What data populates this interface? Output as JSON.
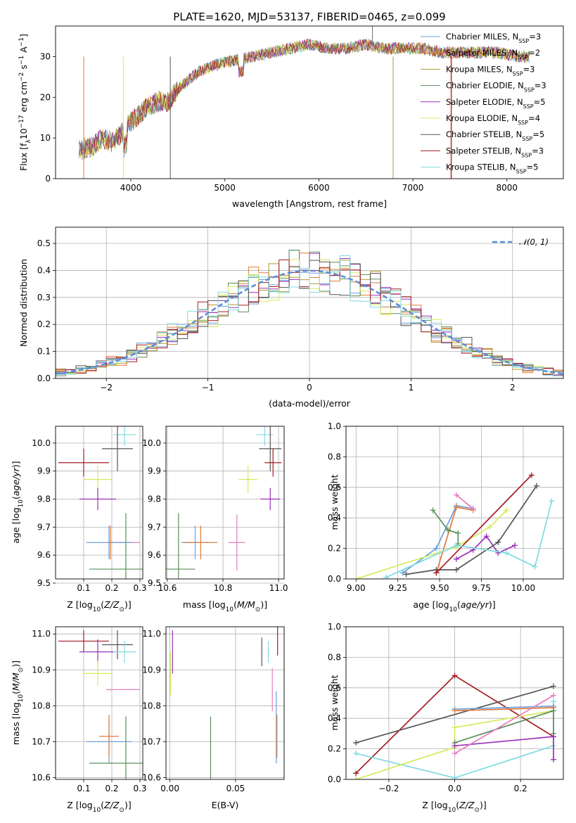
{
  "colors": {
    "chabrier_miles": "#6a9fdc",
    "salpeter_miles": "#e07b39",
    "kroupa_miles": "#b09a30",
    "chabrier_elodie": "#5b8f5b",
    "salpeter_elodie": "#9a30b8",
    "kroupa_elodie": "#d6ea5a",
    "chabrier_stelib": "#555555",
    "salpeter_stelib": "#a51d23",
    "kroupa_stelib": "#7fdbdf",
    "pink": "#e57bbf",
    "normal": "#5b8bd9"
  },
  "chart_data": [
    {
      "id": "spectrum",
      "type": "line",
      "title": "PLATE=1620, MJD=53137, FIBERID=0465, z=0.099",
      "xlabel": "wavelength [Angstrom, rest frame]",
      "ylabel": "Flux [fλ10⁻¹⁷ erg cm⁻² s⁻¹ A⁻¹]",
      "xlim": [
        3200,
        8600
      ],
      "ylim": [
        0,
        37.5
      ],
      "xticks": [
        "4000",
        "5000",
        "6000",
        "7000",
        "8000"
      ],
      "yticks": [
        "0",
        "10",
        "20",
        "30"
      ],
      "legend_position": "top-right",
      "envelope": {
        "x": [
          3450,
          3600,
          3700,
          3800,
          3900,
          4000,
          4100,
          4200,
          4300,
          4400,
          4500,
          4700,
          4900,
          5100,
          5300,
          5500,
          5700,
          5900,
          6100,
          6300,
          6500,
          6700,
          6900,
          7100,
          7300,
          7500,
          7700,
          7900,
          8100,
          8240
        ],
        "y": [
          7,
          8,
          10,
          9,
          11,
          14,
          16,
          18,
          19,
          19,
          22,
          26,
          28,
          29,
          30,
          31,
          32,
          33,
          32,
          32,
          33,
          32,
          32,
          32,
          31,
          31,
          31,
          31,
          30,
          30
        ]
      },
      "series": [
        {
          "name": "Chabrier MILES, N_SSP=3",
          "label_main": "Chabrier MILES, N",
          "label_sub": "SSP",
          "label_tail": "=3",
          "color": "#6a9fdc"
        },
        {
          "name": "Salpeter MILES, N_SSP=2",
          "label_main": "Salpeter MILES, N",
          "label_sub": "SSP",
          "label_tail": "=2",
          "color": "#e07b39"
        },
        {
          "name": "Kroupa MILES, N_SSP=3",
          "label_main": "Kroupa MILES, N",
          "label_sub": "SSP",
          "label_tail": "=3",
          "color": "#b09a30"
        },
        {
          "name": "Chabrier ELODIE, N_SSP=3",
          "label_main": "Chabrier ELODIE, N",
          "label_sub": "SSP",
          "label_tail": "=3",
          "color": "#5b8f5b"
        },
        {
          "name": "Salpeter ELODIE, N_SSP=5",
          "label_main": "Salpeter ELODIE, N",
          "label_sub": "SSP",
          "label_tail": "=5",
          "color": "#9a30b8"
        },
        {
          "name": "Kroupa ELODIE, N_SSP=4",
          "label_main": "Kroupa ELODIE, N",
          "label_sub": "SSP",
          "label_tail": "=4",
          "color": "#d6ea5a"
        },
        {
          "name": "Chabrier STELIB, N_SSP=5",
          "label_main": "Chabrier STELIB, N",
          "label_sub": "SSP",
          "label_tail": "=5",
          "color": "#555555"
        },
        {
          "name": "Salpeter STELIB, N_SSP=3",
          "label_main": "Salpeter STELIB, N",
          "label_sub": "SSP",
          "label_tail": "=3",
          "color": "#a51d23"
        },
        {
          "name": "Kroupa STELIB, N_SSP=5",
          "label_main": "Kroupa STELIB, N",
          "label_sub": "SSP",
          "label_tail": "=5",
          "color": "#7fdbdf"
        }
      ]
    },
    {
      "id": "residuals",
      "type": "line",
      "xlabel": "(data-model)/error",
      "ylabel": "Normed distribution",
      "xlim": [
        -2.5,
        2.5
      ],
      "ylim": [
        0,
        0.56
      ],
      "xticks": [
        "−2",
        "−1",
        "0",
        "1",
        "2"
      ],
      "yticks": [
        "0.0",
        "0.1",
        "0.2",
        "0.3",
        "0.4",
        "0.5"
      ],
      "grid": true,
      "legend": "𝒩(0, 1)",
      "legend_position": "top-right",
      "bin_width": 0.1
    },
    {
      "id": "z-age",
      "type": "scatter",
      "xlabel": "Z [log10(Z/Z⊙)]",
      "ylabel": "age  [log10(age/yr)]",
      "xlim": [
        0.0,
        0.31
      ],
      "ylim": [
        9.515,
        10.06
      ],
      "xticks": [
        "0.1",
        "0.2",
        "0.3"
      ],
      "yticks": [
        "9.5",
        "9.6",
        "9.7",
        "9.8",
        "9.9",
        "10.0"
      ],
      "grid": true,
      "points": [
        {
          "x": 0.245,
          "y": 10.03,
          "xerr": 0.04,
          "yerr": 0.04,
          "color": "#7fdbdf"
        },
        {
          "x": 0.22,
          "y": 9.98,
          "xerr": 0.055,
          "yerr": 0.08,
          "color": "#555555"
        },
        {
          "x": 0.1,
          "y": 9.93,
          "xerr": 0.09,
          "yerr": 0.05,
          "color": "#a51d23"
        },
        {
          "x": 0.15,
          "y": 9.87,
          "xerr": 0.05,
          "yerr": 0.05,
          "color": "#d6ea5a"
        },
        {
          "x": 0.15,
          "y": 9.8,
          "xerr": 0.065,
          "yerr": 0.04,
          "color": "#9a30b8"
        },
        {
          "x": 0.24,
          "y": 9.645,
          "xerr": 0.06,
          "yerr": 0.0,
          "color": "#e57bbf"
        },
        {
          "x": 0.19,
          "y": 9.645,
          "xerr": 0.08,
          "yerr": 0.06,
          "color": "#6a9fdc"
        },
        {
          "x": 0.195,
          "y": 9.645,
          "xerr": 0.005,
          "yerr": 0.06,
          "color": "#e07b39"
        },
        {
          "x": 0.25,
          "y": 9.55,
          "xerr": 0.13,
          "yerr": 0.2,
          "color": "#5b8f5b"
        }
      ]
    },
    {
      "id": "mass-age",
      "type": "scatter",
      "xlabel": "mass [log10(M/M⊙)]",
      "xlim": [
        10.595,
        11.02
      ],
      "ylim": [
        9.515,
        10.06
      ],
      "xticks": [
        "10.6",
        "10.8",
        "11.0"
      ],
      "yticks": [
        "9.5",
        "9.6",
        "9.7",
        "9.8",
        "9.9",
        "10.0"
      ],
      "grid": true,
      "points": [
        {
          "x": 10.95,
          "y": 10.03,
          "xerr": 0.03,
          "yerr": 0.04,
          "color": "#7fdbdf"
        },
        {
          "x": 10.97,
          "y": 9.98,
          "xerr": 0.04,
          "yerr": 0.08,
          "color": "#555555"
        },
        {
          "x": 10.98,
          "y": 9.93,
          "xerr": 0.03,
          "yerr": 0.05,
          "color": "#a51d23"
        },
        {
          "x": 10.89,
          "y": 9.87,
          "xerr": 0.035,
          "yerr": 0.05,
          "color": "#d6ea5a"
        },
        {
          "x": 10.97,
          "y": 9.8,
          "xerr": 0.035,
          "yerr": 0.04,
          "color": "#9a30b8"
        },
        {
          "x": 10.85,
          "y": 9.645,
          "xerr": 0.03,
          "yerr": 0.1,
          "color": "#e57bbf"
        },
        {
          "x": 10.7,
          "y": 9.645,
          "xerr": 0.05,
          "yerr": 0.06,
          "color": "#6a9fdc"
        },
        {
          "x": 10.72,
          "y": 9.645,
          "xerr": 0.06,
          "yerr": 0.06,
          "color": "#e07b39"
        },
        {
          "x": 10.64,
          "y": 9.55,
          "xerr": 0.06,
          "yerr": 0.2,
          "color": "#5b8f5b"
        }
      ]
    },
    {
      "id": "age-weight",
      "type": "line",
      "xlabel": "age  [log10(age/yr)]",
      "ylabel": "mass weight",
      "xlim": [
        8.94,
        10.24
      ],
      "ylim": [
        0.0,
        1.0
      ],
      "xticks": [
        "9.00",
        "9.25",
        "9.50",
        "9.75",
        "10.00"
      ],
      "yticks": [
        "0.0",
        "0.2",
        "0.4",
        "0.6",
        "0.8",
        "1.0"
      ],
      "grid": true,
      "series": [
        {
          "color": "#6a9fdc",
          "x": [
            9.28,
            9.48,
            9.6,
            9.7
          ],
          "y": [
            0.04,
            0.2,
            0.48,
            0.46
          ]
        },
        {
          "color": "#e07b39",
          "x": [
            9.48,
            9.6,
            9.7
          ],
          "y": [
            0.04,
            0.47,
            0.45
          ]
        },
        {
          "color": "#5b8f5b",
          "x": [
            9.46,
            9.55,
            9.61,
            9.61
          ],
          "y": [
            0.45,
            0.32,
            0.3,
            0.23
          ]
        },
        {
          "color": "#9a30b8",
          "x": [
            9.6,
            9.7,
            9.78,
            9.85,
            9.95
          ],
          "y": [
            0.13,
            0.19,
            0.28,
            0.17,
            0.22
          ]
        },
        {
          "color": "#d6ea5a",
          "x": [
            9.0,
            9.6,
            9.8,
            9.9
          ],
          "y": [
            0.0,
            0.21,
            0.34,
            0.45
          ]
        },
        {
          "color": "#555555",
          "x": [
            9.3,
            9.48,
            9.6,
            9.85,
            10.08
          ],
          "y": [
            0.03,
            0.06,
            0.06,
            0.24,
            0.61
          ]
        },
        {
          "color": "#a51d23",
          "x": [
            9.48,
            10.05
          ],
          "y": [
            0.04,
            0.68
          ]
        },
        {
          "color": "#7fdbdf",
          "x": [
            9.18,
            9.6,
            9.9,
            10.07,
            10.17
          ],
          "y": [
            0.01,
            0.22,
            0.17,
            0.08,
            0.51
          ]
        },
        {
          "color": "#e57bbf",
          "x": [
            9.6,
            9.7
          ],
          "y": [
            0.55,
            0.46
          ]
        }
      ]
    },
    {
      "id": "z-mass",
      "type": "scatter",
      "xlabel": "Z [log10(Z/Z⊙)]",
      "ylabel": "mass [log10(M/M⊙)]",
      "xlim": [
        0.0,
        0.31
      ],
      "ylim": [
        10.595,
        11.02
      ],
      "xticks": [
        "0.1",
        "0.2",
        "0.3"
      ],
      "yticks": [
        "10.6",
        "10.7",
        "10.8",
        "10.9",
        "11.0"
      ],
      "grid": true,
      "points": [
        {
          "x": 0.1,
          "y": 10.98,
          "xerr": 0.09,
          "yerr": 0.03,
          "color": "#a51d23"
        },
        {
          "x": 0.22,
          "y": 10.97,
          "xerr": 0.055,
          "yerr": 0.04,
          "color": "#555555"
        },
        {
          "x": 0.15,
          "y": 10.95,
          "xerr": 0.065,
          "yerr": 0.035,
          "color": "#9a30b8"
        },
        {
          "x": 0.245,
          "y": 10.95,
          "xerr": 0.04,
          "yerr": 0.03,
          "color": "#7fdbdf"
        },
        {
          "x": 0.15,
          "y": 10.89,
          "xerr": 0.05,
          "yerr": 0.035,
          "color": "#d6ea5a"
        },
        {
          "x": 0.24,
          "y": 10.845,
          "xerr": 0.06,
          "yerr": 0.0,
          "color": "#e57bbf"
        },
        {
          "x": 0.19,
          "y": 10.7,
          "xerr": 0.08,
          "yerr": 0.06,
          "color": "#6a9fdc"
        },
        {
          "x": 0.19,
          "y": 10.715,
          "xerr": 0.035,
          "yerr": 0.06,
          "color": "#e07b39"
        },
        {
          "x": 0.25,
          "y": 10.64,
          "xerr": 0.13,
          "yerr": 0.13,
          "color": "#5b8f5b"
        }
      ]
    },
    {
      "id": "ebv-mass",
      "type": "scatter",
      "xlabel": "E(B-V)",
      "xlim": [
        -0.003,
        0.087
      ],
      "ylim": [
        10.595,
        11.02
      ],
      "xticks": [
        "0.00",
        "0.05"
      ],
      "yticks": [
        "10.6",
        "10.7",
        "10.8",
        "10.9",
        "11.0"
      ],
      "grid": true,
      "points": [
        {
          "x": 0.002,
          "y": 10.95,
          "xerr": 0,
          "yerr": 0.06,
          "color": "#9a30b8"
        },
        {
          "x": 0.0005,
          "y": 10.89,
          "xerr": 0,
          "yerr": 0.06,
          "color": "#d6ea5a"
        },
        {
          "x": 0.031,
          "y": 10.64,
          "xerr": 0,
          "yerr": 0.13,
          "color": "#5b8f5b"
        },
        {
          "x": 0.07,
          "y": 10.95,
          "xerr": 0,
          "yerr": 0.04,
          "color": "#555555"
        },
        {
          "x": 0.075,
          "y": 10.95,
          "xerr": 0,
          "yerr": 0.03,
          "color": "#7fdbdf"
        },
        {
          "x": 0.078,
          "y": 10.845,
          "xerr": 0,
          "yerr": 0.06,
          "color": "#e57bbf"
        },
        {
          "x": 0.082,
          "y": 10.98,
          "xerr": 0,
          "yerr": 0.04,
          "color": "#a51d23"
        },
        {
          "x": 0.081,
          "y": 10.74,
          "xerr": 0,
          "yerr": 0.1,
          "color": "#6a9fdc"
        },
        {
          "x": 0.0815,
          "y": 10.715,
          "xerr": 0,
          "yerr": 0.06,
          "color": "#e07b39"
        }
      ]
    },
    {
      "id": "z-weight",
      "type": "line",
      "xlabel": "Z [log10(Z/Z⊙)]",
      "ylabel": "mass weight",
      "xlim": [
        -0.33,
        0.33
      ],
      "ylim": [
        0.0,
        1.0
      ],
      "xticks": [
        "−0.2",
        "0.0",
        "0.2"
      ],
      "yticks": [
        "0.0",
        "0.2",
        "0.4",
        "0.6",
        "0.8",
        "1.0"
      ],
      "grid": true,
      "series": [
        {
          "color": "#a51d23",
          "x": [
            -0.3,
            0.0,
            0.3
          ],
          "y": [
            0.04,
            0.68,
            0.28
          ]
        },
        {
          "color": "#555555",
          "x": [
            -0.3,
            0.3
          ],
          "y": [
            0.24,
            0.61
          ]
        },
        {
          "color": "#7fdbdf",
          "x": [
            -0.3,
            0.0,
            0.3,
            0.3
          ],
          "y": [
            0.17,
            0.01,
            0.22,
            0.51
          ]
        },
        {
          "color": "#d6ea5a",
          "x": [
            -0.3,
            0.0,
            0.0,
            0.3
          ],
          "y": [
            0.0,
            0.21,
            0.34,
            0.45
          ]
        },
        {
          "color": "#6a9fdc",
          "x": [
            0.0,
            0.3
          ],
          "y": [
            0.46,
            0.48
          ]
        },
        {
          "color": "#e07b39",
          "x": [
            0.0,
            0.3
          ],
          "y": [
            0.45,
            0.47
          ]
        },
        {
          "color": "#5b8f5b",
          "x": [
            0.0,
            0.3,
            0.3
          ],
          "y": [
            0.24,
            0.45,
            0.3
          ]
        },
        {
          "color": "#9a30b8",
          "x": [
            0.0,
            0.3,
            0.3
          ],
          "y": [
            0.22,
            0.28,
            0.13
          ]
        },
        {
          "color": "#e57bbf",
          "x": [
            0.0,
            0.3
          ],
          "y": [
            0.17,
            0.55
          ]
        }
      ]
    }
  ]
}
